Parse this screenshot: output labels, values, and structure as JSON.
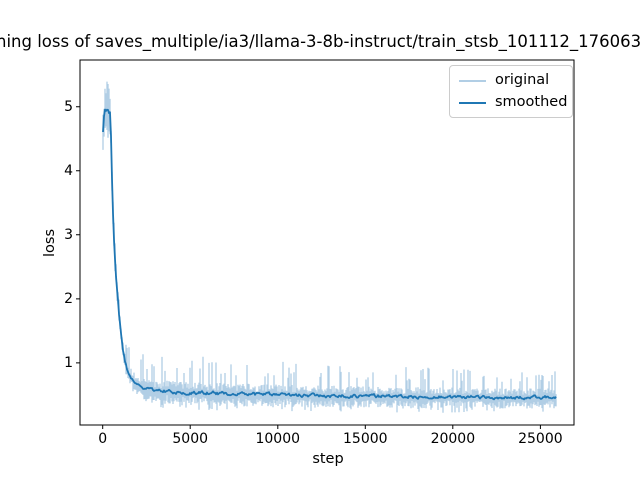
{
  "figure": {
    "background": "#ffffff"
  },
  "chart_data": {
    "type": "line",
    "title_visible": "ning loss of saves_multiple/ia3/llama-3-8b-instruct/train_stsb_101112_176063",
    "xlabel": "step",
    "ylabel": "loss",
    "xlim": [
      -1296,
      26920
    ],
    "ylim": [
      0.03,
      5.73
    ],
    "xticks": [
      0,
      5000,
      10000,
      15000,
      20000,
      25000
    ],
    "yticks": [
      1,
      2,
      3,
      4,
      5
    ],
    "x_start": 0,
    "x_end": 25900,
    "grid": false,
    "legend": {
      "position": "upper right",
      "entries": [
        {
          "label": "original",
          "color": "#b1cee5",
          "line_width": 2
        },
        {
          "label": "smoothed",
          "color": "#1f77b4",
          "line_width": 2
        }
      ]
    },
    "colors": {
      "original": "#b1cee5",
      "smoothed": "#1f77b4",
      "axes": "#000000"
    },
    "series": [
      {
        "name": "smoothed",
        "points": [
          [
            0,
            4.5
          ],
          [
            60,
            4.78
          ],
          [
            130,
            4.93
          ],
          [
            200,
            4.9
          ],
          [
            280,
            4.96
          ],
          [
            350,
            4.88
          ],
          [
            420,
            4.92
          ],
          [
            470,
            4.6
          ],
          [
            530,
            3.9
          ],
          [
            590,
            3.35
          ],
          [
            650,
            2.9
          ],
          [
            700,
            2.62
          ],
          [
            760,
            2.36
          ],
          [
            870,
            2.0
          ],
          [
            930,
            1.78
          ],
          [
            1040,
            1.46
          ],
          [
            1160,
            1.2
          ],
          [
            1270,
            1.02
          ],
          [
            1390,
            0.9
          ],
          [
            1560,
            0.8
          ],
          [
            1790,
            0.7
          ],
          [
            2130,
            0.63
          ],
          [
            2470,
            0.59
          ],
          [
            3000,
            0.57
          ],
          [
            4000,
            0.55
          ],
          [
            5000,
            0.54
          ],
          [
            6500,
            0.525
          ],
          [
            8000,
            0.515
          ],
          [
            10000,
            0.5
          ],
          [
            12000,
            0.49
          ],
          [
            14000,
            0.485
          ],
          [
            16000,
            0.478
          ],
          [
            18000,
            0.472
          ],
          [
            20000,
            0.468
          ],
          [
            22000,
            0.462
          ],
          [
            24000,
            0.458
          ],
          [
            25900,
            0.462
          ]
        ],
        "wiggle_amp": [
          [
            0,
            0.06
          ],
          [
            450,
            0.04
          ],
          [
            1500,
            0.03
          ],
          [
            3000,
            0.045
          ],
          [
            25900,
            0.04
          ]
        ]
      },
      {
        "name": "original",
        "representation": "noisy raw loss forming a band around the smoothed curve with upward spikes",
        "noise_lo": [
          [
            0,
            0.42
          ],
          [
            420,
            0.4
          ],
          [
            560,
            0.22
          ],
          [
            900,
            0.13
          ],
          [
            1500,
            0.14
          ],
          [
            2500,
            0.19
          ],
          [
            6000,
            0.2
          ],
          [
            25900,
            0.17
          ]
        ],
        "noise_hi": [
          [
            0,
            0.42
          ],
          [
            420,
            0.33
          ],
          [
            560,
            0.2
          ],
          [
            900,
            0.12
          ],
          [
            1500,
            0.14
          ],
          [
            2500,
            0.17
          ],
          [
            25900,
            0.14
          ]
        ],
        "spike_amp": [
          [
            0,
            0.18
          ],
          [
            420,
            0.12
          ],
          [
            900,
            0.08
          ],
          [
            1500,
            0.3
          ],
          [
            2500,
            0.42
          ],
          [
            9000,
            0.38
          ],
          [
            15000,
            0.32
          ],
          [
            25900,
            0.28
          ]
        ],
        "spike_prob": 0.18
      }
    ]
  }
}
